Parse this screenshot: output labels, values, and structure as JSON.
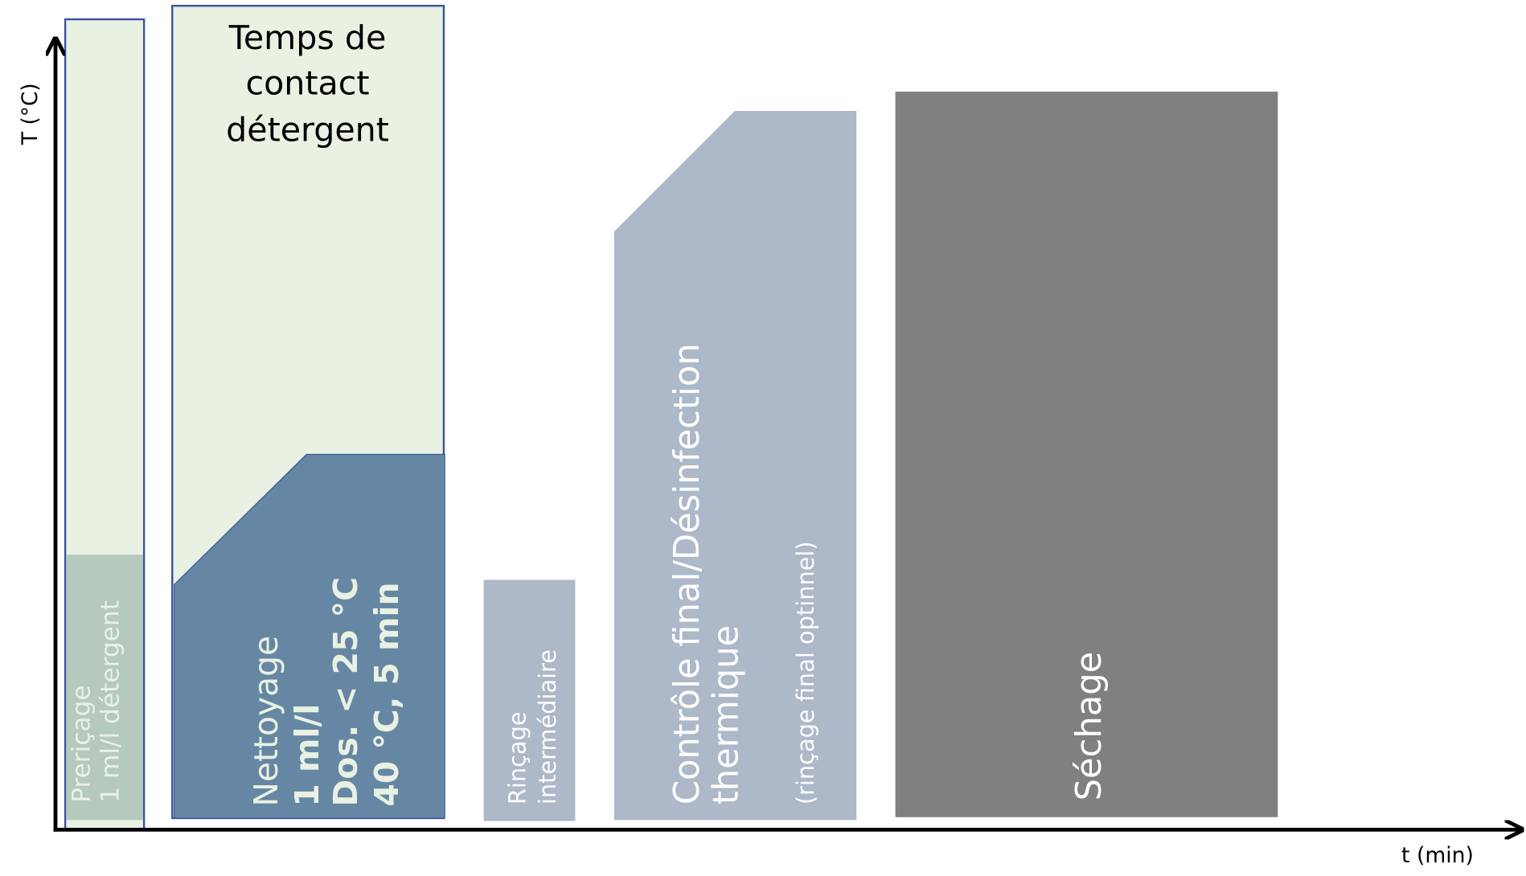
{
  "axes": {
    "y_label": "T (°C)",
    "x_label": "t (min)"
  },
  "stages": [
    {
      "lines": [
        "Preriçage",
        "1 ml/l détergent"
      ]
    },
    {
      "header": [
        "Temps de",
        "contact",
        "détergent"
      ],
      "lines": [
        "Nettoyage",
        "1 ml/l",
        "Dos. < 25 °C",
        "40 °C, 5 min"
      ]
    },
    {
      "lines": [
        "Rinçage",
        "intermédiaire"
      ]
    },
    {
      "lines": [
        "Contrôle final/Désinfection",
        "thermique",
        "(rinçage final optinnel)"
      ]
    },
    {
      "lines": [
        "Séchage"
      ]
    }
  ]
}
